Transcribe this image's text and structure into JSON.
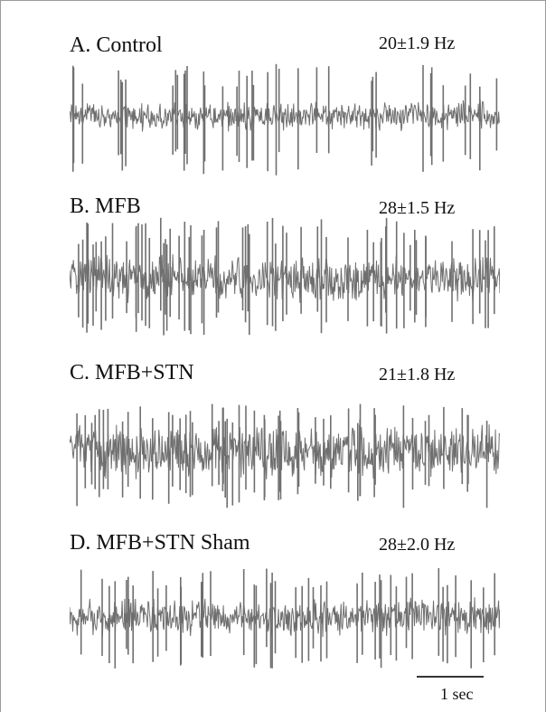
{
  "panels": [
    {
      "label": "A. Control",
      "rate": "20±1.9 Hz"
    },
    {
      "label": "B. MFB",
      "rate": "28±1.5 Hz"
    },
    {
      "label": "C. MFB+STN",
      "rate": "21±1.8 Hz"
    },
    {
      "label": "D. MFB+STN Sham",
      "rate": "28±2.0 Hz"
    }
  ],
  "scale_bar": {
    "label": "1 sec"
  },
  "colors": {
    "trace": "#6f6f6f"
  }
}
